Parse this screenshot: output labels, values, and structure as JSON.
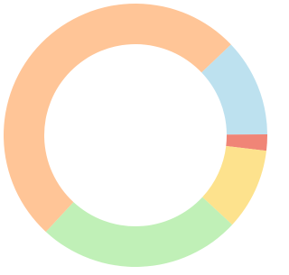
{
  "chart_data": {
    "type": "donut",
    "values": [
      12,
      2,
      10,
      25,
      51
    ],
    "colors": [
      "#bde1ef",
      "#f08577",
      "#fde28d",
      "#c0f0b7",
      "#ffc597"
    ]
  }
}
